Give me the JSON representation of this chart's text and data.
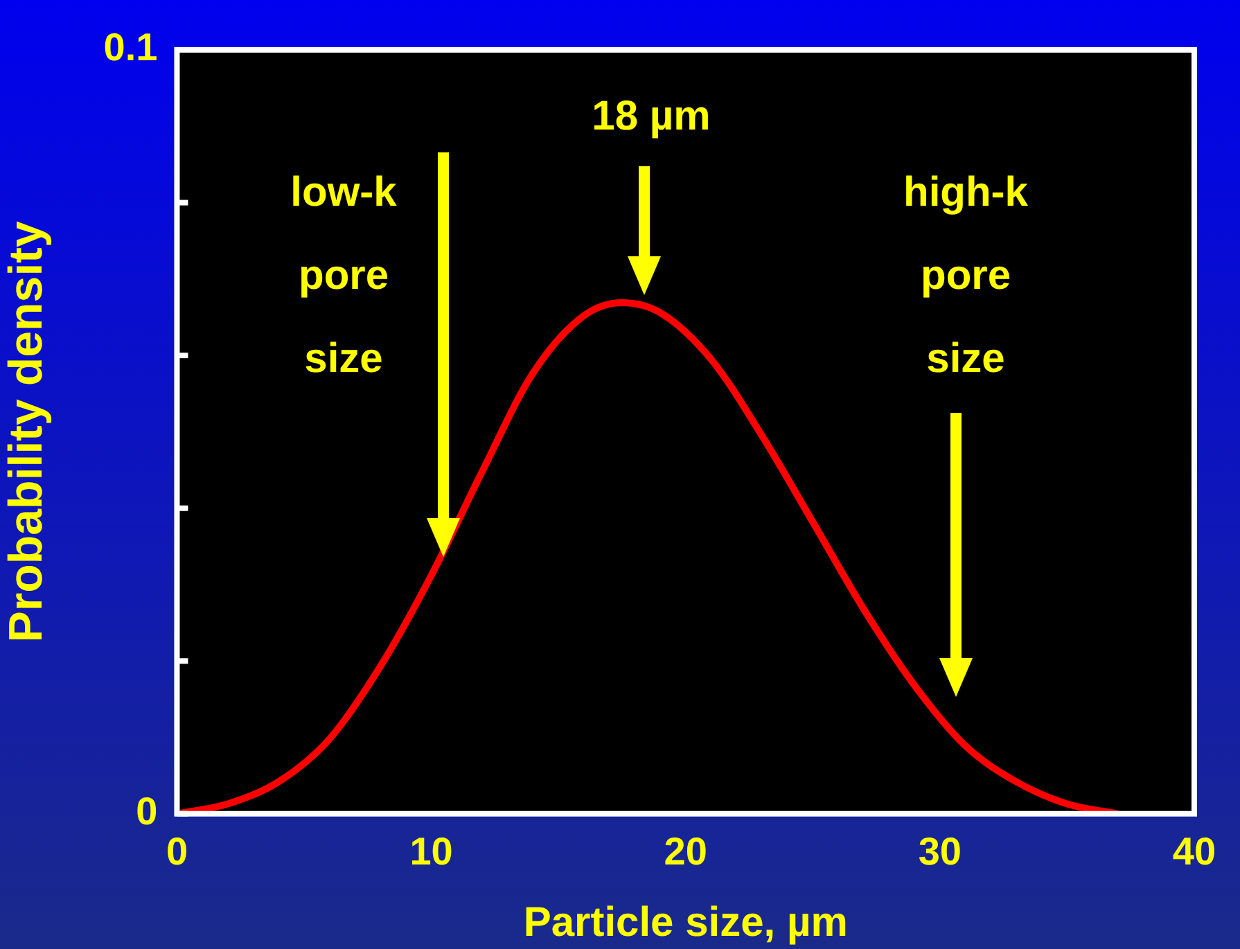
{
  "chart_data": {
    "type": "line",
    "xlabel": "Particle size, µm",
    "ylabel": "Probability density",
    "x": [
      0,
      2,
      4,
      6,
      8,
      10,
      12,
      14,
      16,
      17.5,
      19,
      21,
      23,
      25,
      27,
      29,
      31,
      33,
      35,
      37
    ],
    "series": [
      {
        "color": "#ff0000",
        "values": [
          0,
          0.0013,
          0.0042,
          0.0098,
          0.0193,
          0.0312,
          0.0448,
          0.0577,
          0.0652,
          0.0669,
          0.0656,
          0.0595,
          0.0495,
          0.0382,
          0.0268,
          0.0168,
          0.0089,
          0.0042,
          0.0013,
          0
        ]
      }
    ],
    "xlim": [
      0,
      40
    ],
    "xticks": [
      0,
      10,
      20,
      30,
      40
    ],
    "ylim": [
      0,
      0.1
    ],
    "yticks": [
      0,
      {
        "value": 0.02,
        "label": null
      },
      {
        "value": 0.04,
        "label": null
      },
      {
        "value": 0.06,
        "label": null
      },
      {
        "value": 0.08,
        "label": null
      },
      {
        "value": 0.1,
        "label": "0.1"
      }
    ],
    "marker": "none",
    "annotations": [
      "18 µm",
      "low-k pore size",
      "high-k pore size"
    ]
  }
}
